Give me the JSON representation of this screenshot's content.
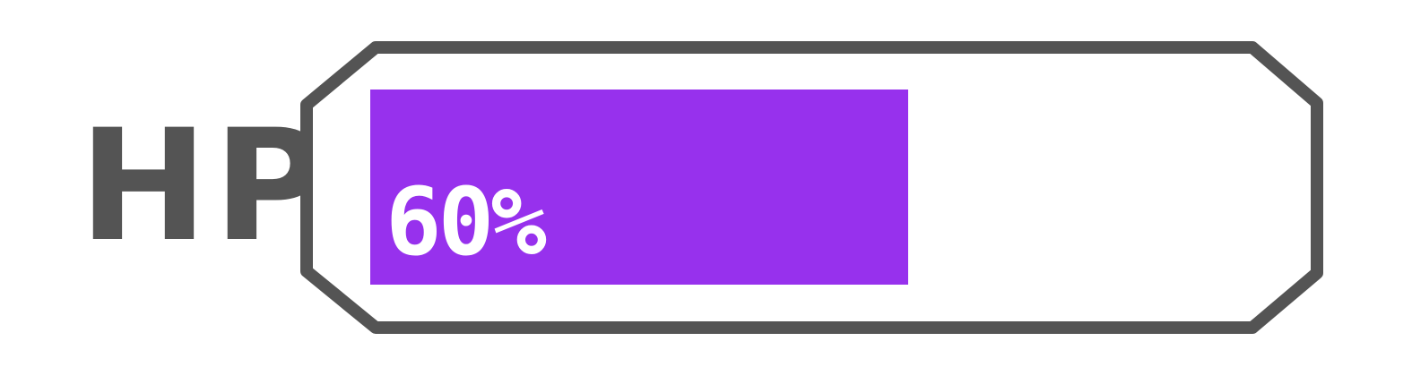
{
  "hud": {
    "label": "HP",
    "value_text": "60%",
    "fraction": 0.6
  },
  "colors": {
    "fill": "#9731ED",
    "frame": "#545454",
    "label": "#545454",
    "text": "#FFFFFF"
  }
}
